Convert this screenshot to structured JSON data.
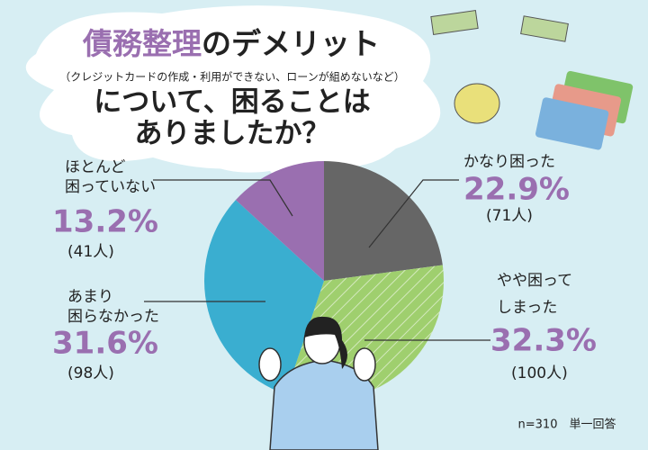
{
  "chart_data": {
    "type": "pie",
    "title_highlight": "債務整理",
    "title_rest": "のデメリット",
    "subtitle": "（クレジットカードの作成・利用ができない、ローンが組めないなど）",
    "title_lines": [
      "について、困ることは",
      "ありましたか？"
    ],
    "categories": [
      [
        "かなり困った"
      ],
      [
        "やや困って",
        "しまった"
      ],
      [
        "あまり",
        "困らなかった"
      ],
      [
        "ほとんど",
        "困っていない"
      ]
    ],
    "values": [
      22.9,
      32.3,
      31.6,
      13.2
    ],
    "value_labels": [
      "22.9%",
      "32.3%",
      "31.6%",
      "13.2%"
    ],
    "counts": [
      71,
      100,
      98,
      41
    ],
    "count_labels": [
      "(71人)",
      "(100人)",
      "(98人)",
      "(41人)"
    ],
    "colors": [
      "#666666",
      "#9fcf6e",
      "#3aaed0",
      "#9a6fb0"
    ],
    "hatched": [
      false,
      true,
      false,
      false
    ],
    "note": "n=310　単一回答"
  }
}
